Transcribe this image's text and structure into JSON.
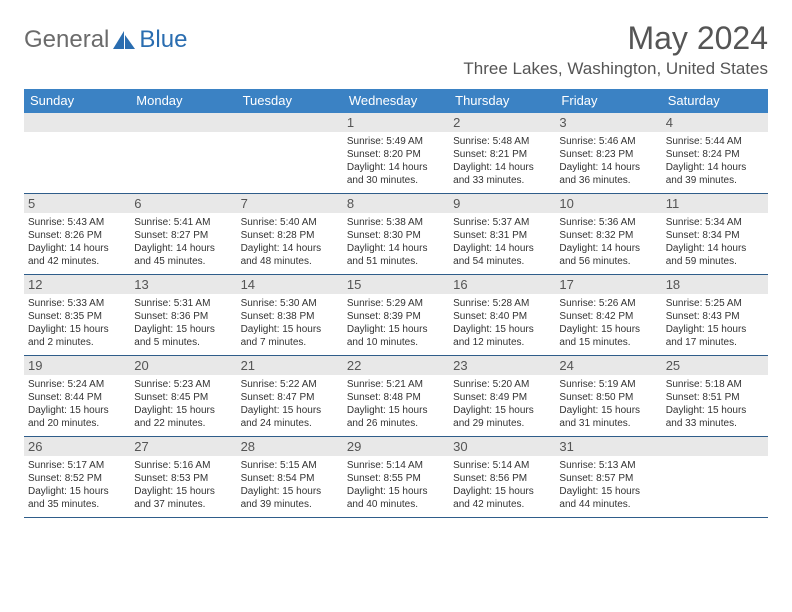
{
  "logo": {
    "text1": "General",
    "text2": "Blue"
  },
  "title": "May 2024",
  "location": "Three Lakes, Washington, United States",
  "colors": {
    "header_bg": "#3b82c4",
    "header_text": "#ffffff",
    "daynum_bg": "#e8e8e8",
    "body_text": "#333333",
    "week_border": "#2f5d8a",
    "title_color": "#555555",
    "logo_gray": "#6b6b6b",
    "logo_blue": "#2a6db0"
  },
  "day_names": [
    "Sunday",
    "Monday",
    "Tuesday",
    "Wednesday",
    "Thursday",
    "Friday",
    "Saturday"
  ],
  "weeks": [
    [
      {
        "n": "",
        "sr": "",
        "ss": "",
        "dl": ""
      },
      {
        "n": "",
        "sr": "",
        "ss": "",
        "dl": ""
      },
      {
        "n": "",
        "sr": "",
        "ss": "",
        "dl": ""
      },
      {
        "n": "1",
        "sr": "Sunrise: 5:49 AM",
        "ss": "Sunset: 8:20 PM",
        "dl": "Daylight: 14 hours and 30 minutes."
      },
      {
        "n": "2",
        "sr": "Sunrise: 5:48 AM",
        "ss": "Sunset: 8:21 PM",
        "dl": "Daylight: 14 hours and 33 minutes."
      },
      {
        "n": "3",
        "sr": "Sunrise: 5:46 AM",
        "ss": "Sunset: 8:23 PM",
        "dl": "Daylight: 14 hours and 36 minutes."
      },
      {
        "n": "4",
        "sr": "Sunrise: 5:44 AM",
        "ss": "Sunset: 8:24 PM",
        "dl": "Daylight: 14 hours and 39 minutes."
      }
    ],
    [
      {
        "n": "5",
        "sr": "Sunrise: 5:43 AM",
        "ss": "Sunset: 8:26 PM",
        "dl": "Daylight: 14 hours and 42 minutes."
      },
      {
        "n": "6",
        "sr": "Sunrise: 5:41 AM",
        "ss": "Sunset: 8:27 PM",
        "dl": "Daylight: 14 hours and 45 minutes."
      },
      {
        "n": "7",
        "sr": "Sunrise: 5:40 AM",
        "ss": "Sunset: 8:28 PM",
        "dl": "Daylight: 14 hours and 48 minutes."
      },
      {
        "n": "8",
        "sr": "Sunrise: 5:38 AM",
        "ss": "Sunset: 8:30 PM",
        "dl": "Daylight: 14 hours and 51 minutes."
      },
      {
        "n": "9",
        "sr": "Sunrise: 5:37 AM",
        "ss": "Sunset: 8:31 PM",
        "dl": "Daylight: 14 hours and 54 minutes."
      },
      {
        "n": "10",
        "sr": "Sunrise: 5:36 AM",
        "ss": "Sunset: 8:32 PM",
        "dl": "Daylight: 14 hours and 56 minutes."
      },
      {
        "n": "11",
        "sr": "Sunrise: 5:34 AM",
        "ss": "Sunset: 8:34 PM",
        "dl": "Daylight: 14 hours and 59 minutes."
      }
    ],
    [
      {
        "n": "12",
        "sr": "Sunrise: 5:33 AM",
        "ss": "Sunset: 8:35 PM",
        "dl": "Daylight: 15 hours and 2 minutes."
      },
      {
        "n": "13",
        "sr": "Sunrise: 5:31 AM",
        "ss": "Sunset: 8:36 PM",
        "dl": "Daylight: 15 hours and 5 minutes."
      },
      {
        "n": "14",
        "sr": "Sunrise: 5:30 AM",
        "ss": "Sunset: 8:38 PM",
        "dl": "Daylight: 15 hours and 7 minutes."
      },
      {
        "n": "15",
        "sr": "Sunrise: 5:29 AM",
        "ss": "Sunset: 8:39 PM",
        "dl": "Daylight: 15 hours and 10 minutes."
      },
      {
        "n": "16",
        "sr": "Sunrise: 5:28 AM",
        "ss": "Sunset: 8:40 PM",
        "dl": "Daylight: 15 hours and 12 minutes."
      },
      {
        "n": "17",
        "sr": "Sunrise: 5:26 AM",
        "ss": "Sunset: 8:42 PM",
        "dl": "Daylight: 15 hours and 15 minutes."
      },
      {
        "n": "18",
        "sr": "Sunrise: 5:25 AM",
        "ss": "Sunset: 8:43 PM",
        "dl": "Daylight: 15 hours and 17 minutes."
      }
    ],
    [
      {
        "n": "19",
        "sr": "Sunrise: 5:24 AM",
        "ss": "Sunset: 8:44 PM",
        "dl": "Daylight: 15 hours and 20 minutes."
      },
      {
        "n": "20",
        "sr": "Sunrise: 5:23 AM",
        "ss": "Sunset: 8:45 PM",
        "dl": "Daylight: 15 hours and 22 minutes."
      },
      {
        "n": "21",
        "sr": "Sunrise: 5:22 AM",
        "ss": "Sunset: 8:47 PM",
        "dl": "Daylight: 15 hours and 24 minutes."
      },
      {
        "n": "22",
        "sr": "Sunrise: 5:21 AM",
        "ss": "Sunset: 8:48 PM",
        "dl": "Daylight: 15 hours and 26 minutes."
      },
      {
        "n": "23",
        "sr": "Sunrise: 5:20 AM",
        "ss": "Sunset: 8:49 PM",
        "dl": "Daylight: 15 hours and 29 minutes."
      },
      {
        "n": "24",
        "sr": "Sunrise: 5:19 AM",
        "ss": "Sunset: 8:50 PM",
        "dl": "Daylight: 15 hours and 31 minutes."
      },
      {
        "n": "25",
        "sr": "Sunrise: 5:18 AM",
        "ss": "Sunset: 8:51 PM",
        "dl": "Daylight: 15 hours and 33 minutes."
      }
    ],
    [
      {
        "n": "26",
        "sr": "Sunrise: 5:17 AM",
        "ss": "Sunset: 8:52 PM",
        "dl": "Daylight: 15 hours and 35 minutes."
      },
      {
        "n": "27",
        "sr": "Sunrise: 5:16 AM",
        "ss": "Sunset: 8:53 PM",
        "dl": "Daylight: 15 hours and 37 minutes."
      },
      {
        "n": "28",
        "sr": "Sunrise: 5:15 AM",
        "ss": "Sunset: 8:54 PM",
        "dl": "Daylight: 15 hours and 39 minutes."
      },
      {
        "n": "29",
        "sr": "Sunrise: 5:14 AM",
        "ss": "Sunset: 8:55 PM",
        "dl": "Daylight: 15 hours and 40 minutes."
      },
      {
        "n": "30",
        "sr": "Sunrise: 5:14 AM",
        "ss": "Sunset: 8:56 PM",
        "dl": "Daylight: 15 hours and 42 minutes."
      },
      {
        "n": "31",
        "sr": "Sunrise: 5:13 AM",
        "ss": "Sunset: 8:57 PM",
        "dl": "Daylight: 15 hours and 44 minutes."
      },
      {
        "n": "",
        "sr": "",
        "ss": "",
        "dl": ""
      }
    ]
  ]
}
